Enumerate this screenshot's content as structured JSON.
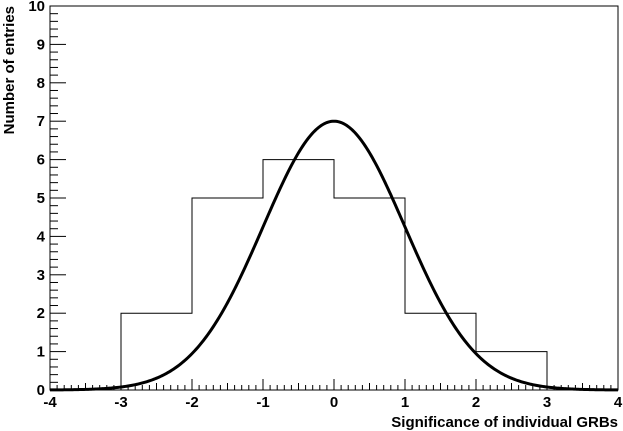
{
  "chart_data": {
    "type": "histogram",
    "title": "",
    "xlabel": "Significance of individual GRBs",
    "ylabel": "Number of entries",
    "xlim": [
      -4,
      4
    ],
    "ylim": [
      0,
      10
    ],
    "grid": false,
    "x_ticks": [
      "-4",
      "-3",
      "-2",
      "-1",
      "0",
      "1",
      "2",
      "3",
      "4"
    ],
    "y_ticks": [
      "0",
      "1",
      "2",
      "3",
      "4",
      "5",
      "6",
      "7",
      "8",
      "9",
      "10"
    ],
    "histogram": {
      "bin_edges": [
        -3,
        -2,
        -1,
        0,
        1,
        2,
        3
      ],
      "counts": [
        2,
        5,
        6,
        5,
        2,
        1
      ]
    },
    "curve": {
      "type": "gaussian",
      "amplitude": 7,
      "mean": 0,
      "sigma": 1
    }
  },
  "colors": {
    "line": "#000000",
    "background": "#ffffff"
  }
}
